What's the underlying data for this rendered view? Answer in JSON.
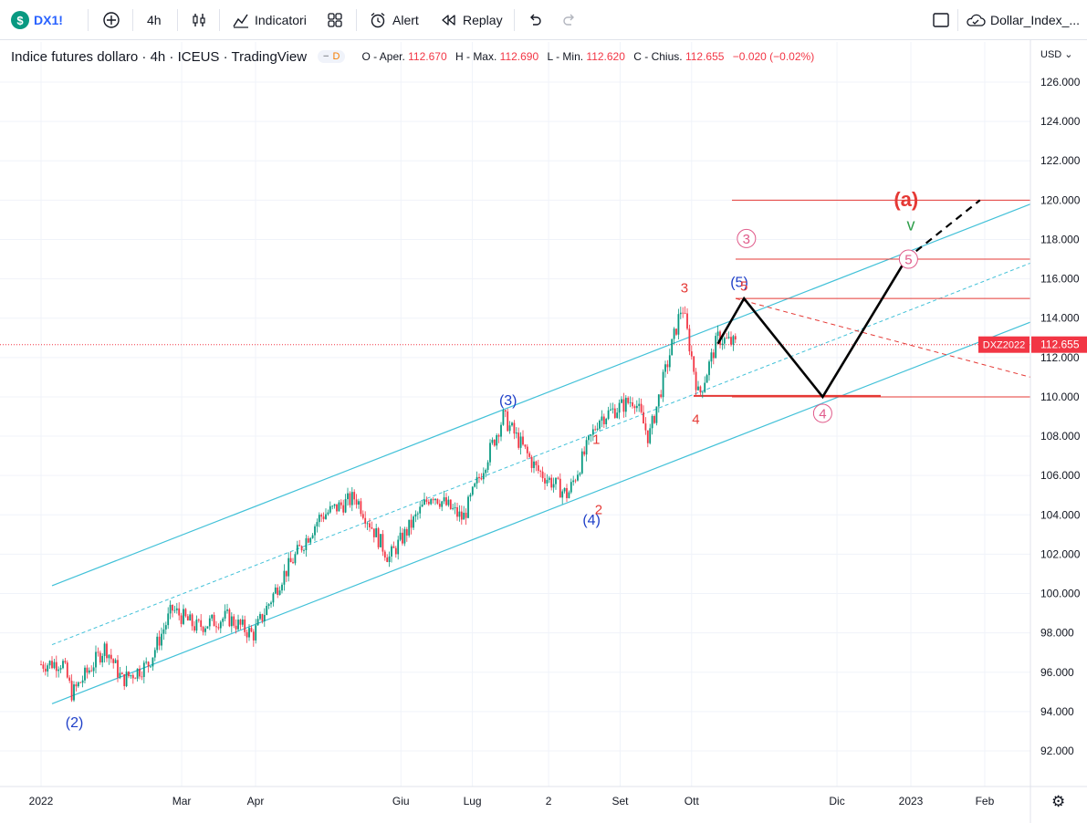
{
  "toolbar": {
    "symbol": "DX1!",
    "symbol_badge": "$",
    "interval": "4h",
    "indicators_label": "Indicatori",
    "alert_label": "Alert",
    "replay_label": "Replay",
    "layout_name": "Dollar_Index_..."
  },
  "legend": {
    "title": "Indice futures dollaro · 4h · ICEUS · TradingView",
    "badge": "D",
    "open_label": "O - Aper.",
    "open": "112.670",
    "high_label": "H - Max.",
    "high": "112.690",
    "low_label": "L - Min.",
    "low": "112.620",
    "close_label": "C - Chius.",
    "close": "112.655",
    "change": "−0.020 (−0.02%)"
  },
  "chart_data": {
    "type": "line",
    "currency_label": "USD",
    "y_ticks": [
      "126.000",
      "124.000",
      "122.000",
      "120.000",
      "118.000",
      "116.000",
      "114.000",
      "112.000",
      "110.000",
      "108.000",
      "106.000",
      "104.000",
      "102.000",
      "100.000",
      "98.000",
      "96.000",
      "94.000",
      "92.000"
    ],
    "x_ticks": [
      "2022",
      "Mar",
      "Apr",
      "Giu",
      "Lug",
      "2",
      "Set",
      "Ott",
      "Dic",
      "2023",
      "Feb"
    ],
    "ylim": [
      90.8,
      127.7
    ],
    "price_series": {
      "x": [
        "2022-01-01",
        "2022-01-10",
        "2022-01-14",
        "2022-01-28",
        "2022-02-04",
        "2022-02-15",
        "2022-02-25",
        "2022-03-07",
        "2022-03-20",
        "2022-03-31",
        "2022-04-12",
        "2022-04-28",
        "2022-05-13",
        "2022-05-27",
        "2022-06-14",
        "2022-06-27",
        "2022-07-14",
        "2022-07-28",
        "2022-08-10",
        "2022-08-23",
        "2022-09-07",
        "2022-09-13",
        "2022-09-27",
        "2022-10-04",
        "2022-10-12",
        "2022-10-20"
      ],
      "values": [
        96.4,
        96.5,
        94.9,
        97.3,
        95.6,
        96.4,
        99.2,
        98.3,
        98.8,
        97.9,
        100.8,
        103.9,
        104.9,
        101.8,
        105.1,
        103.8,
        109.0,
        106.3,
        105.0,
        108.9,
        109.9,
        107.9,
        114.7,
        110.0,
        113.0,
        112.655
      ]
    },
    "last_price": "112.655",
    "last_price_label": "DXZ2022",
    "horizontal_levels": [
      120.0,
      117.0,
      115.0,
      110.0
    ],
    "projection_path": {
      "x": [
        "2022-10-12",
        "2022-10-23",
        "2022-11-25",
        "2022-12-30"
      ],
      "values": [
        112.7,
        115.0,
        110.0,
        117.0
      ]
    },
    "projection_extension": {
      "x": [
        "2022-12-30",
        "2023-01-30"
      ],
      "values": [
        117.0,
        120.0
      ]
    },
    "wave_labels": [
      {
        "text": "(2)",
        "x": "2022-01-15",
        "y": 94.5
      },
      {
        "text": "(3)",
        "x": "2022-07-16",
        "y": 109.2
      },
      {
        "text": "(4)",
        "x": "2022-08-20",
        "y": 104.7
      },
      {
        "text": "(5)",
        "x": "2022-10-21",
        "y": 115.2
      },
      {
        "text": "1",
        "x": "2022-08-22",
        "y": 107.4
      },
      {
        "text": "2",
        "x": "2022-08-23",
        "y": 105.3
      },
      {
        "text": "3",
        "x": "2022-09-28",
        "y": 114.9
      },
      {
        "text": "4",
        "x": "2022-10-02",
        "y": 109.9
      },
      {
        "text": "5",
        "x": "2022-10-23",
        "y": 115.0
      },
      {
        "text": "3",
        "x": "2022-10-24",
        "y": 117.4
      },
      {
        "text": "4",
        "x": "2022-11-25",
        "y": 110.0
      },
      {
        "text": "5",
        "x": "2022-12-31",
        "y": 117.0
      },
      {
        "text": "(a)",
        "x": "2022-12-30",
        "y": 119.5
      },
      {
        "text": "v",
        "x": "2023-01-01",
        "y": 118.3
      }
    ]
  },
  "colors": {
    "channel": "#42c1d8",
    "levels": "#e53935",
    "up_candle": "#089981",
    "down_candle": "#f23645",
    "wave_blue": "#1e3fc8",
    "wave_red": "#e53935",
    "wave_pink": "#e05a8a",
    "wave_green": "#2e9e4a",
    "path": "#000000",
    "price_tag": "#f23645"
  }
}
